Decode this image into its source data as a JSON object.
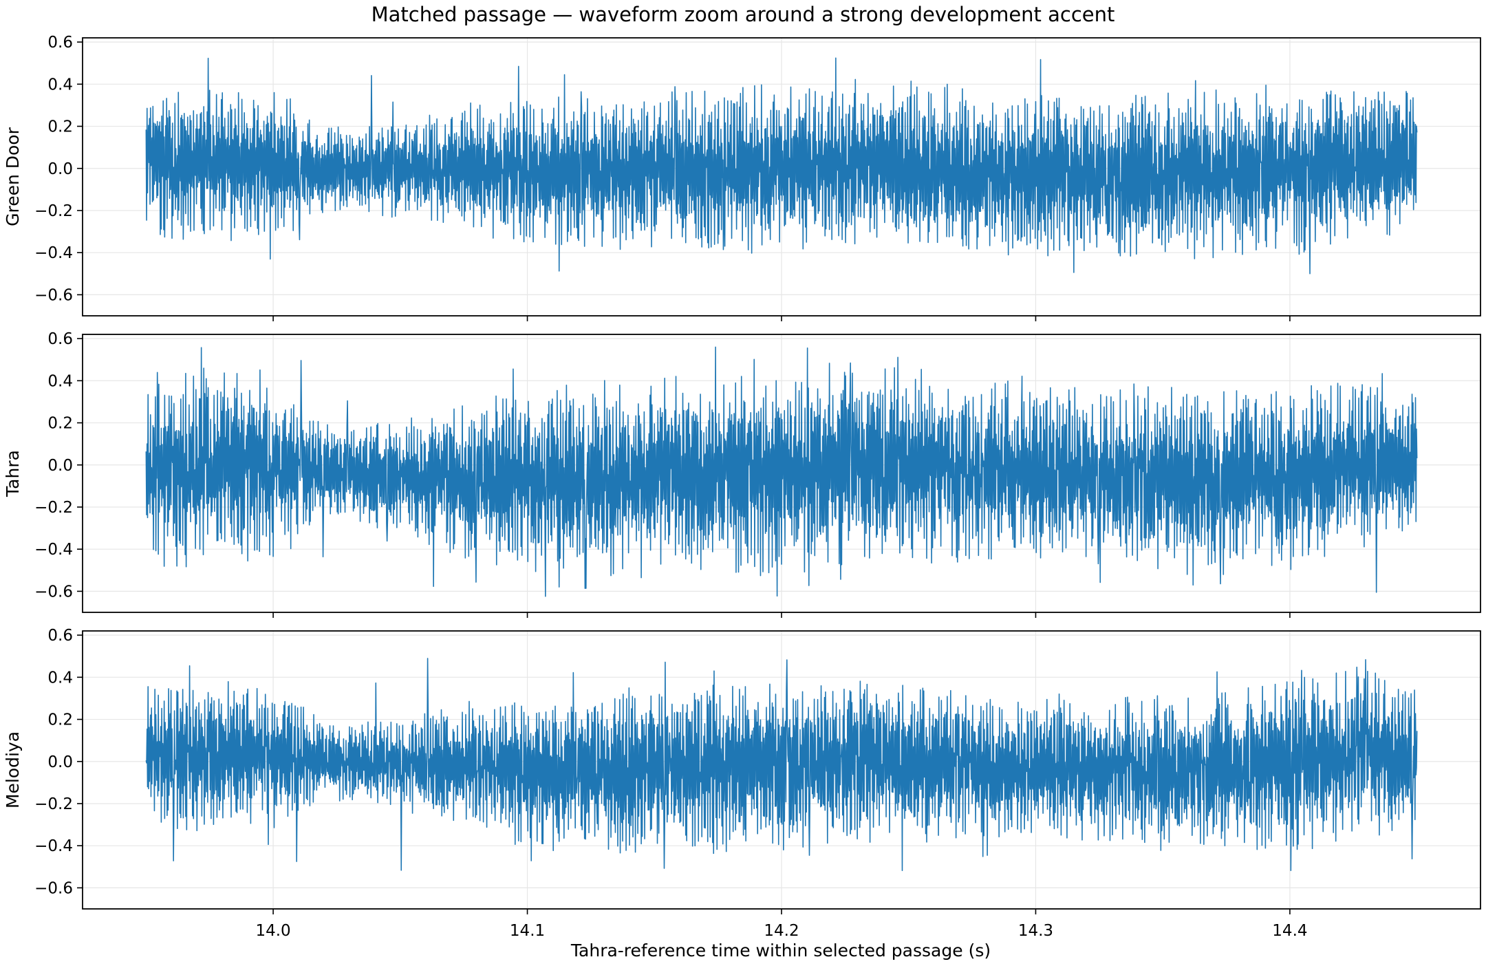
{
  "chart_data": {
    "type": "line",
    "title": "Matched passage — waveform zoom around a strong development accent",
    "xlabel": "Tahra-reference time within selected passage (s)",
    "xlim": [
      13.925,
      14.475
    ],
    "x_ticks": [
      14.0,
      14.1,
      14.2,
      14.3,
      14.4
    ],
    "x_tick_labels": [
      "14.0",
      "14.1",
      "14.2",
      "14.3",
      "14.4"
    ],
    "ylim": [
      -0.7,
      0.62
    ],
    "y_ticks": [
      -0.6,
      -0.4,
      -0.2,
      0.0,
      0.2,
      0.4,
      0.6
    ],
    "y_tick_labels": [
      "−0.6",
      "−0.4",
      "−0.2",
      "0.0",
      "0.2",
      "0.4",
      "0.6"
    ],
    "grid": true,
    "line_color": "#1f77b4",
    "sharex": true,
    "series": [
      {
        "name": "Green Door",
        "x_start": 13.95,
        "x_end": 14.45,
        "envelope": {
          "t": [
            13.95,
            13.96,
            13.98,
            14.0,
            14.02,
            14.05,
            14.08,
            14.1,
            14.13,
            14.16,
            14.2,
            14.24,
            14.28,
            14.32,
            14.36,
            14.4,
            14.43,
            14.45
          ],
          "upper": [
            0.36,
            0.38,
            0.38,
            0.38,
            0.2,
            0.2,
            0.3,
            0.32,
            0.33,
            0.36,
            0.38,
            0.42,
            0.35,
            0.34,
            0.36,
            0.38,
            0.4,
            0.38
          ],
          "lower": [
            -0.3,
            -0.33,
            -0.32,
            -0.33,
            -0.2,
            -0.22,
            -0.3,
            -0.35,
            -0.36,
            -0.38,
            -0.38,
            -0.36,
            -0.4,
            -0.4,
            -0.42,
            -0.38,
            -0.34,
            -0.3
          ]
        },
        "peak_max": 0.54,
        "peak_min": -0.5
      },
      {
        "name": "Tahra",
        "x_start": 13.95,
        "x_end": 14.45,
        "envelope": {
          "t": [
            13.95,
            13.96,
            13.98,
            14.0,
            14.02,
            14.05,
            14.08,
            14.1,
            14.13,
            14.16,
            14.2,
            14.24,
            14.28,
            14.32,
            14.36,
            14.4,
            14.43,
            14.45
          ],
          "upper": [
            0.4,
            0.45,
            0.45,
            0.42,
            0.18,
            0.22,
            0.32,
            0.36,
            0.38,
            0.4,
            0.42,
            0.45,
            0.38,
            0.35,
            0.36,
            0.38,
            0.42,
            0.35
          ],
          "lower": [
            -0.45,
            -0.48,
            -0.46,
            -0.45,
            -0.25,
            -0.32,
            -0.45,
            -0.5,
            -0.52,
            -0.5,
            -0.5,
            -0.45,
            -0.45,
            -0.42,
            -0.52,
            -0.48,
            -0.38,
            -0.3
          ]
        },
        "peak_max": 0.56,
        "peak_min": -0.63
      },
      {
        "name": "Melodiya",
        "x_start": 13.95,
        "x_end": 14.45,
        "envelope": {
          "t": [
            13.95,
            13.96,
            13.98,
            14.0,
            14.02,
            14.05,
            14.08,
            14.1,
            14.13,
            14.16,
            14.2,
            14.24,
            14.28,
            14.32,
            14.36,
            14.4,
            14.43,
            14.45
          ],
          "upper": [
            0.35,
            0.38,
            0.36,
            0.35,
            0.18,
            0.2,
            0.28,
            0.3,
            0.34,
            0.36,
            0.36,
            0.38,
            0.3,
            0.28,
            0.32,
            0.38,
            0.42,
            0.36
          ],
          "lower": [
            -0.3,
            -0.32,
            -0.3,
            -0.3,
            -0.18,
            -0.22,
            -0.32,
            -0.4,
            -0.44,
            -0.42,
            -0.4,
            -0.36,
            -0.36,
            -0.36,
            -0.42,
            -0.4,
            -0.36,
            -0.3
          ]
        },
        "peak_max": 0.5,
        "peak_min": -0.53
      }
    ]
  }
}
